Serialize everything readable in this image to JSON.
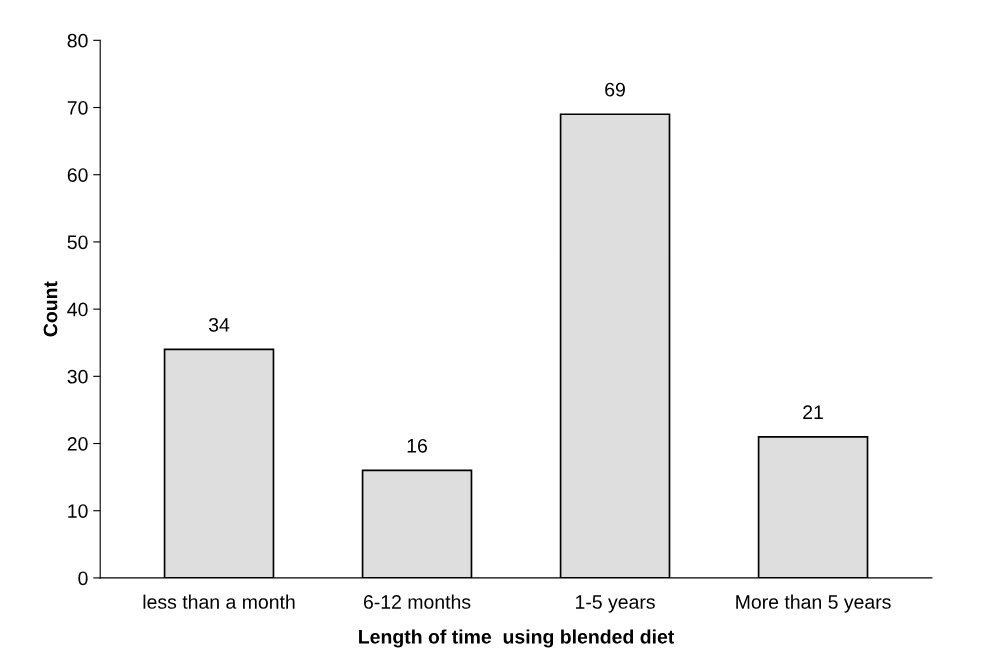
{
  "chart_data": {
    "type": "bar",
    "categories": [
      "less than a month",
      "6-12 months",
      "1-5 years",
      "More than 5 years"
    ],
    "values": [
      34,
      16,
      69,
      21
    ],
    "color": "#dedede",
    "xlabel": "Length of time  using blended diet",
    "ylabel": "Count",
    "ylim": [
      0,
      80
    ],
    "yticks": [
      0,
      10,
      20,
      30,
      40,
      50,
      60,
      70,
      80
    ],
    "data_labels": true,
    "grid": false,
    "legend": false
  }
}
